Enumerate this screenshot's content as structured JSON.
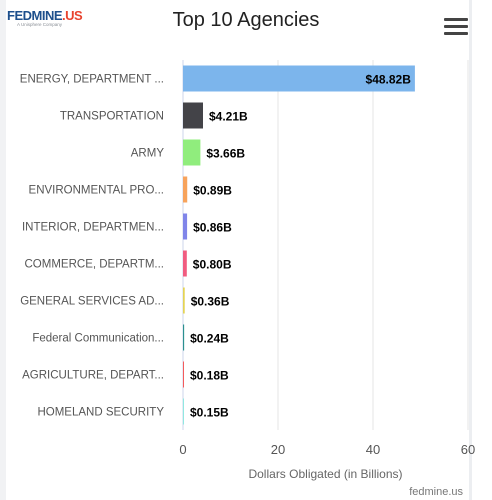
{
  "header": {
    "logo_text": "FEDMINE",
    "logo_ext": ".US",
    "logo_tagline": "A Unisphere Company",
    "title": "Top 10 Agencies",
    "menu_icon": "hamburger-menu-icon"
  },
  "footer": {
    "credit": "fedmine.us"
  },
  "chart_data": {
    "type": "bar",
    "orientation": "horizontal",
    "title": "Top 10 Agencies",
    "xlabel": "Dollars Obligated (in Billions)",
    "ylabel": "",
    "xlim": [
      0,
      60
    ],
    "xticks": [
      0,
      20,
      40,
      60
    ],
    "grid": true,
    "categories": [
      "ENERGY, DEPARTMENT ...",
      "TRANSPORTATION",
      "ARMY",
      "ENVIRONMENTAL PRO...",
      "INTERIOR, DEPARTMEN...",
      "COMMERCE, DEPARTM...",
      "GENERAL SERVICES AD...",
      "Federal Communication...",
      "AGRICULTURE, DEPART...",
      "HOMELAND SECURITY"
    ],
    "values": [
      48.82,
      4.21,
      3.66,
      0.89,
      0.86,
      0.8,
      0.36,
      0.24,
      0.18,
      0.15
    ],
    "data_labels": [
      "$48.82B",
      "$4.21B",
      "$3.66B",
      "$0.89B",
      "$0.86B",
      "$0.80B",
      "$0.36B",
      "$0.24B",
      "$0.18B",
      "$0.15B"
    ],
    "colors": [
      "#7cb5ec",
      "#434348",
      "#90ed7d",
      "#f7a35c",
      "#8085e9",
      "#f15c80",
      "#e4d354",
      "#2b908f",
      "#f45b5b",
      "#91e8e1"
    ]
  }
}
